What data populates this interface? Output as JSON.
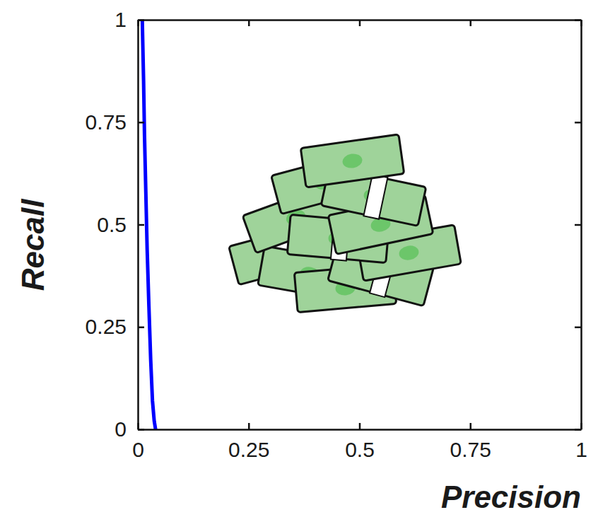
{
  "chart_data": {
    "type": "line",
    "x_label": "Precision",
    "y_label": "Recall",
    "x": [
      0.01,
      0.011,
      0.013,
      0.015,
      0.018,
      0.021,
      0.025,
      0.029,
      0.033,
      0.037,
      0.04
    ],
    "values": [
      1,
      0.95,
      0.85,
      0.72,
      0.58,
      0.44,
      0.3,
      0.17,
      0.07,
      0.02,
      0
    ],
    "color": "#0000ff",
    "xlim": [
      0,
      1
    ],
    "xticks": [
      0,
      0.25,
      0.5,
      0.75,
      1
    ],
    "ylim": [
      0,
      1
    ],
    "yticks": [
      0,
      0.25,
      0.5,
      0.75,
      1
    ],
    "grid": false
  }
}
